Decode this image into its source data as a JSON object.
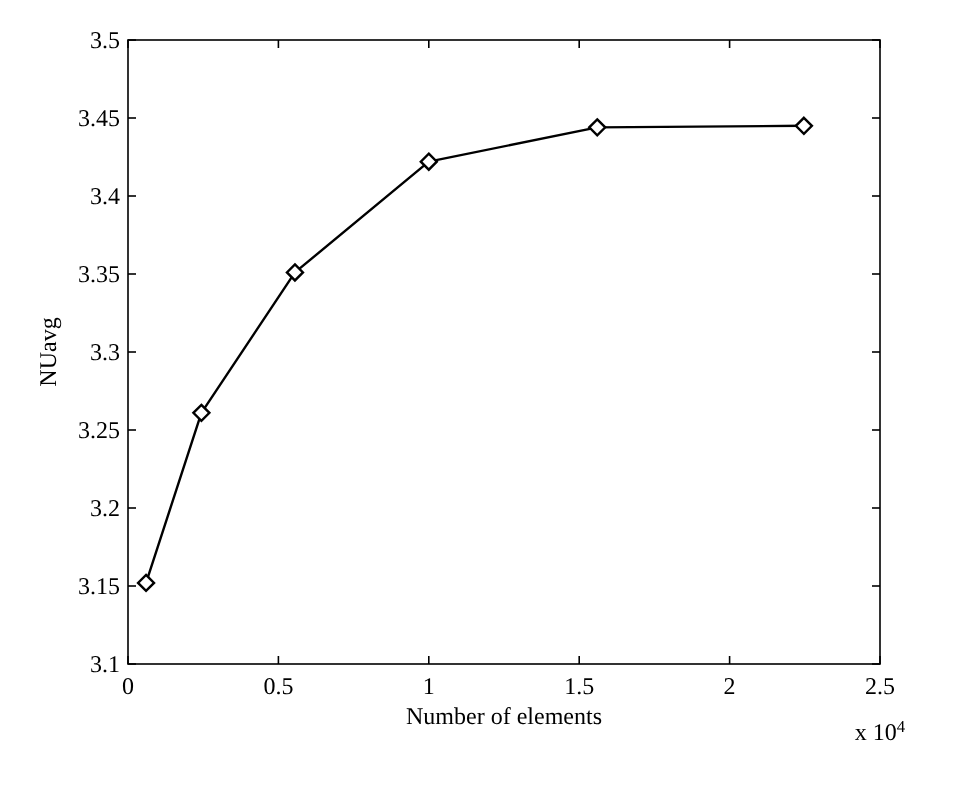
{
  "chart_data": {
    "type": "line",
    "xlabel": "Number of elements",
    "ylabel": "NUavg",
    "x": [
      0.06,
      0.244,
      0.555,
      1.0,
      1.56,
      2.247
    ],
    "series": [
      {
        "color": "#000000",
        "values": [
          3.152,
          3.261,
          3.351,
          3.422,
          3.444,
          3.445
        ]
      }
    ],
    "xlim": [
      0,
      2.5
    ],
    "xticks": [
      0,
      0.5,
      1,
      1.5,
      2,
      2.5
    ],
    "ylim": [
      3.1,
      3.5
    ],
    "yticks": [
      3.1,
      3.15,
      3.2,
      3.25,
      3.3,
      3.35,
      3.4,
      3.45,
      3.5
    ],
    "annotations": [
      "x 10$^{4}$"
    ],
    "marker": "diamond",
    "line_style": "solid"
  }
}
